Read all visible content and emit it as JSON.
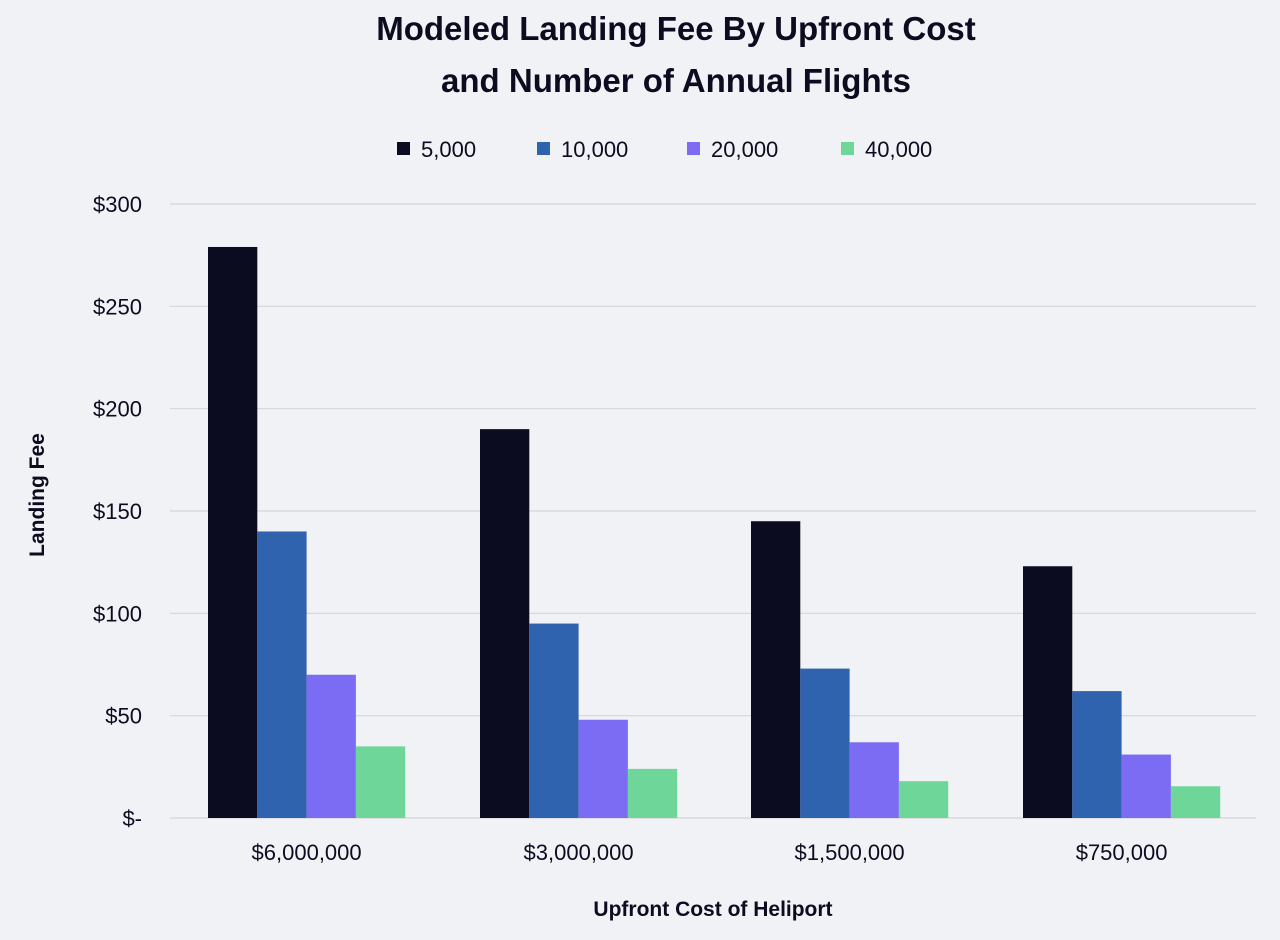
{
  "chart_data": {
    "type": "bar",
    "title_lines": [
      "Modeled Landing Fee By Upfront Cost",
      "and Number of Annual Flights"
    ],
    "xlabel": "Upfront Cost of Heliport",
    "ylabel": "Landing Fee",
    "categories": [
      "$6,000,000",
      "$3,000,000",
      "$1,500,000",
      "$750,000"
    ],
    "series": [
      {
        "name": "5,000",
        "color": "#0b0c1f",
        "values": [
          279,
          190,
          145,
          123
        ]
      },
      {
        "name": "10,000",
        "color": "#3063ad",
        "values": [
          140,
          95,
          73,
          62
        ]
      },
      {
        "name": "20,000",
        "color": "#7c6cf4",
        "values": [
          70,
          48,
          37,
          31
        ]
      },
      {
        "name": "40,000",
        "color": "#6fd69a",
        "values": [
          35,
          24,
          18,
          15.5
        ]
      }
    ],
    "y_ticks": [
      {
        "value": 0,
        "label": "$-"
      },
      {
        "value": 50,
        "label": "$50"
      },
      {
        "value": 100,
        "label": "$100"
      },
      {
        "value": 150,
        "label": "$150"
      },
      {
        "value": 200,
        "label": "$200"
      },
      {
        "value": 250,
        "label": "$250"
      },
      {
        "value": 300,
        "label": "$300"
      }
    ],
    "ylim": [
      0,
      300
    ],
    "grid": true,
    "legend_position": "top-center"
  }
}
